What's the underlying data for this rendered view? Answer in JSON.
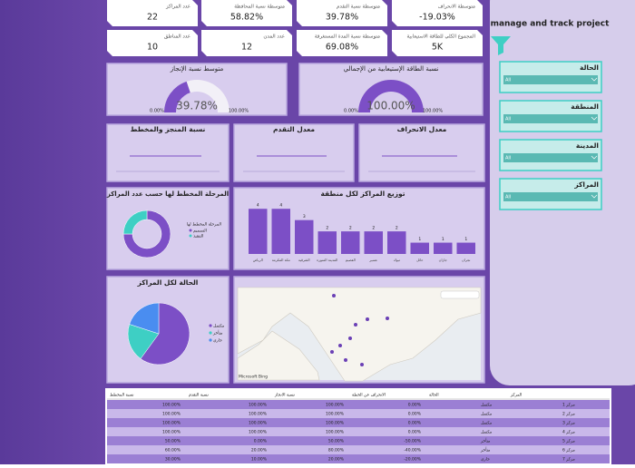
{
  "kpis": [
    {
      "label": "عدد المراكز",
      "value": "22"
    },
    {
      "label": "متوسطة نسبة المحافظة",
      "value": "58.82%"
    },
    {
      "label": "متوسطة نسبة التقدم",
      "value": "39.78%"
    },
    {
      "label": "متوسطة الانحراف",
      "value": "-19.03%"
    },
    {
      "label": "عدد المناطق",
      "value": "10"
    },
    {
      "label": "عدد المدن",
      "value": "12"
    },
    {
      "label": "متوسطة نسبة المدة المستغرقة",
      "value": "69.08%"
    },
    {
      "label": "المجموع الكلي للطاقة الاستيعابية",
      "value": "5K"
    }
  ],
  "gauges": [
    {
      "title": "متوسط نسبة الإنجاز",
      "value": {
        "value": 39.78,
        "label": "39.78%"
      },
      "min": {
        "value": 0,
        "label": "0.00%"
      },
      "max": {
        "value": 100,
        "label": "100.00%"
      }
    },
    {
      "title": "نسبة الطاقة الإستيعابية من الإجمالي",
      "value": {
        "value": 100,
        "label": "100.00%"
      },
      "min": {
        "value": 0,
        "label": "0.00%"
      },
      "max": {
        "value": 100,
        "label": "100.00%"
      }
    }
  ],
  "mini_charts": [
    {
      "title": "نسبة المنجز والمخطط"
    },
    {
      "title": "معدل التقدم"
    },
    {
      "title": "معدل الانحراف"
    }
  ],
  "donut": {
    "title": "المرحلة المخطط لها حسب عدد المراكز",
    "legend_title": "المرحلة المخطط لها",
    "series": [
      {
        "name": "التصميم",
        "color": "#7c4fc6",
        "value": 75
      },
      {
        "name": "التنفيذ",
        "color": "#3ecfc4",
        "value": 25
      }
    ]
  },
  "bar_chart": {
    "title": "توزيع المراكز لكل منطقة",
    "color": "#7c4fc6",
    "categories": [
      "الرياض",
      "مكة المكرمة",
      "الشرقية",
      "المدينة المنورة",
      "القصيم",
      "عسير",
      "تبوك",
      "حائل",
      "جازان",
      "نجران"
    ],
    "values": [
      4,
      4,
      3,
      2,
      2,
      2,
      2,
      1,
      1,
      1
    ],
    "ylim": [
      0,
      4.5
    ]
  },
  "pie": {
    "title": "الحالة لكل المراكز",
    "series": [
      {
        "name": "مكتمل",
        "color": "#7c4fc6",
        "value": 60
      },
      {
        "name": "متأخر",
        "color": "#3ecfc4",
        "value": 20
      },
      {
        "name": "جاري",
        "color": "#4a8df0",
        "value": 20
      }
    ]
  },
  "map": {
    "attribution": "Microsoft Bing"
  },
  "panel": {
    "title": "manage and track project",
    "slicers": [
      {
        "label": "الحالة",
        "value": "All"
      },
      {
        "label": "المنطقة",
        "value": "All"
      },
      {
        "label": "المدينة",
        "value": "All"
      },
      {
        "label": "المراكز",
        "value": "All"
      }
    ]
  },
  "table": {
    "header": [
      "نسبة المخطط",
      "نسبة التقدم",
      "نسبة الانجاز",
      "الانحراف عن الخطة",
      "الحالة",
      "المركز"
    ],
    "rows": [
      [
        "100.00%",
        "100.00%",
        "100.00%",
        "0.00%",
        "مكتمل",
        "مركز 1"
      ],
      [
        "100.00%",
        "100.00%",
        "100.00%",
        "0.00%",
        "مكتمل",
        "مركز 2"
      ],
      [
        "100.00%",
        "100.00%",
        "100.00%",
        "0.00%",
        "مكتمل",
        "مركز 3"
      ],
      [
        "100.00%",
        "100.00%",
        "100.00%",
        "0.00%",
        "مكتمل",
        "مركز 4"
      ],
      [
        "50.00%",
        "0.00%",
        "50.00%",
        "-50.00%",
        "متأخر",
        "مركز 5"
      ],
      [
        "60.00%",
        "20.00%",
        "80.00%",
        "-40.00%",
        "متأخر",
        "مركز 6"
      ],
      [
        "30.00%",
        "10.00%",
        "20.00%",
        "-20.00%",
        "جاري",
        "مركز 7"
      ]
    ]
  }
}
